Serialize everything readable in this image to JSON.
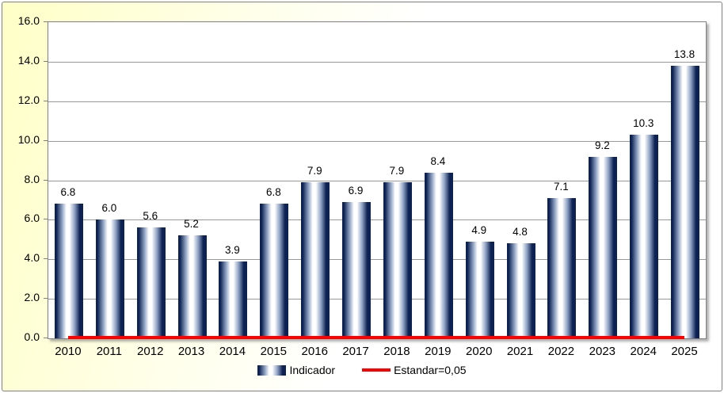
{
  "chart_data": {
    "type": "bar",
    "title": "",
    "categories": [
      "2010",
      "2011",
      "2012",
      "2013",
      "2014",
      "2015",
      "2016",
      "2017",
      "2018",
      "2019",
      "2020",
      "2021",
      "2022",
      "2023",
      "2024",
      "2025"
    ],
    "series": [
      {
        "name": "Indicador",
        "values": [
          6.8,
          6.0,
          5.6,
          5.2,
          3.9,
          6.8,
          7.9,
          6.9,
          7.9,
          8.4,
          4.9,
          4.8,
          7.1,
          9.2,
          10.3,
          13.8
        ],
        "value_labels": [
          "6.8",
          "6.0",
          "5.6",
          "5.2",
          "3.9",
          "6.8",
          "7.9",
          "6.9",
          "7.9",
          "8.4",
          "4.9",
          "4.8",
          "7.1",
          "9.2",
          "10.3",
          "13.8"
        ]
      }
    ],
    "standard_line": {
      "name": "Estandar=0,05",
      "value": 0.05
    },
    "xlabel": "",
    "ylabel": "",
    "ylim": [
      0,
      16
    ],
    "ytick_step": 2,
    "ytick_labels": [
      "0.0",
      "2.0",
      "4.0",
      "6.0",
      "8.0",
      "10.0",
      "12.0",
      "14.0",
      "16.0"
    ],
    "grid": true,
    "legend_position": "bottom"
  },
  "legend": {
    "items": [
      {
        "label": "Indicador",
        "marker": "gradient-bar-swatch"
      },
      {
        "label": "Estandar=0,05",
        "marker": "red-line-swatch"
      }
    ]
  },
  "colors": {
    "chart_background": "#FFFFC7",
    "plot_background": "#FFFFFF",
    "bar_dark": "#0D2252",
    "bar_mid": "#8FA2C4",
    "bar_highlight": "#FFFFFF",
    "gridline": "#999999",
    "tick": "#808080",
    "border": "#808080",
    "standard_line_color": "#FF0000",
    "text": "#000000"
  }
}
